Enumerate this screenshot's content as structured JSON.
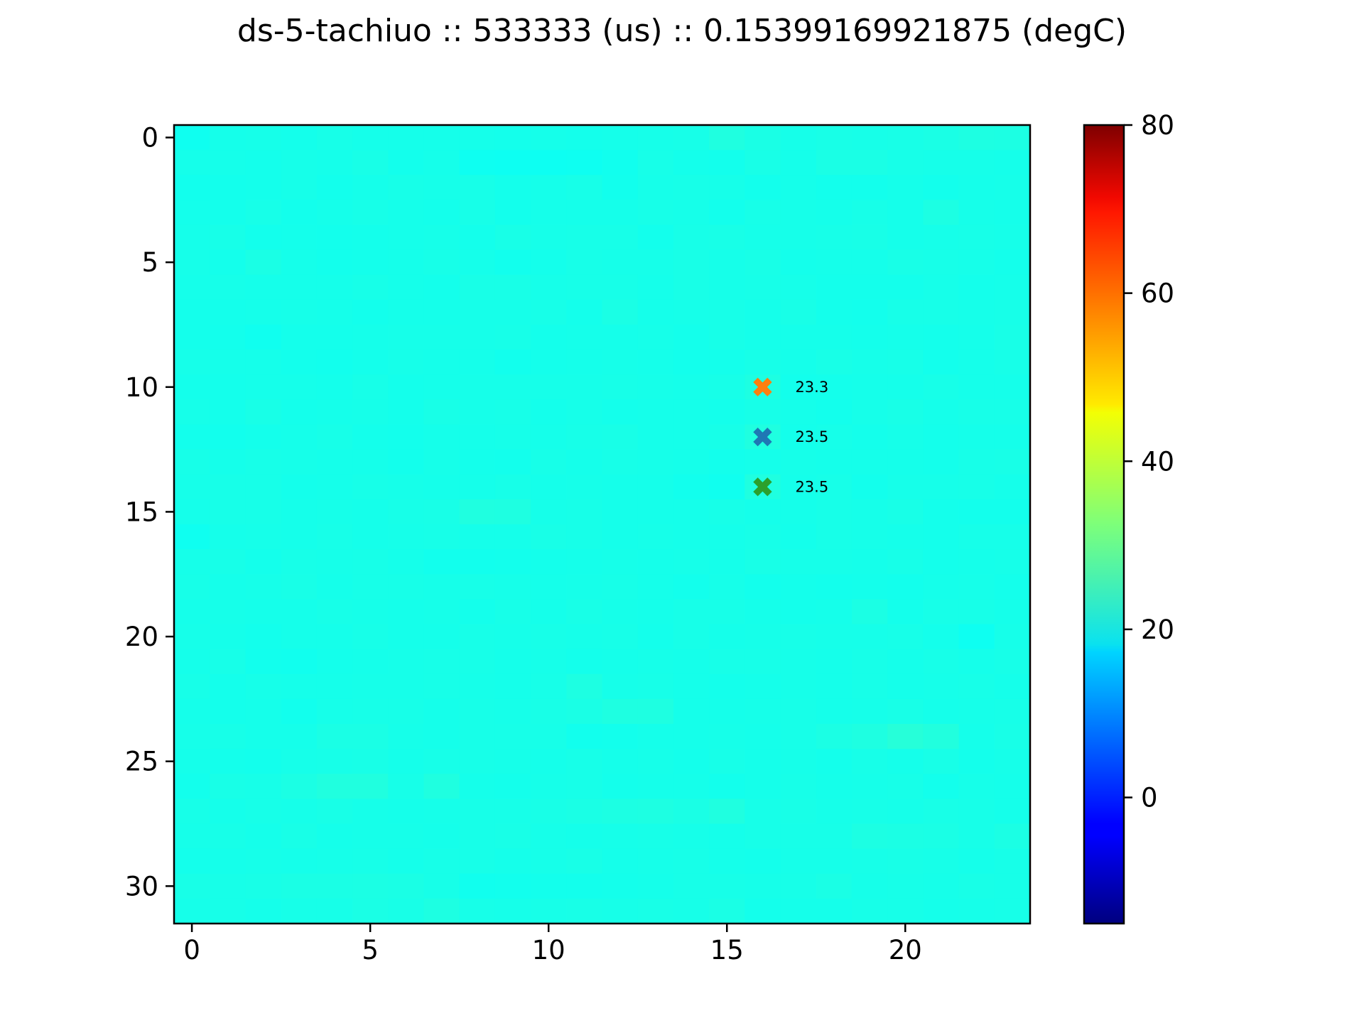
{
  "chart_data": {
    "type": "heatmap",
    "title": "ds-5-tachiuo :: 533333 (us) :: 0.15399169921875 (degC)",
    "xlabel": "",
    "ylabel": "",
    "rows": 32,
    "cols": 24,
    "xlim": [
      -0.5,
      23.5
    ],
    "ylim": [
      31.5,
      -0.5
    ],
    "x_ticks": [
      0,
      5,
      10,
      15,
      20
    ],
    "y_ticks": [
      0,
      5,
      10,
      15,
      20,
      25,
      30
    ],
    "colormap": "jet",
    "colorbar": {
      "vmin": -15,
      "vmax": 80,
      "ticks": [
        0,
        20,
        40,
        60,
        80
      ]
    },
    "base_value": 23.5,
    "values": [
      [
        22.0,
        22.6,
        22.7,
        22.5,
        22.8,
        22.6,
        22.6,
        22.6,
        22.6,
        22.5,
        22.6,
        22.5,
        22.6,
        22.7,
        22.8,
        23.5,
        23.0,
        22.7,
        22.9,
        22.8,
        22.9,
        23.0,
        23.3,
        23.2
      ],
      [
        22.6,
        22.6,
        22.5,
        22.7,
        22.6,
        22.9,
        22.4,
        22.6,
        21.9,
        21.8,
        21.8,
        21.9,
        22.2,
        22.8,
        22.5,
        22.4,
        22.9,
        22.6,
        23.0,
        23.0,
        22.8,
        22.7,
        22.7,
        22.6
      ],
      [
        22.3,
        22.4,
        22.5,
        22.7,
        22.4,
        22.6,
        22.8,
        22.7,
        22.8,
        22.5,
        22.6,
        22.8,
        22.3,
        22.7,
        22.8,
        22.7,
        22.4,
        22.6,
        22.4,
        22.4,
        22.6,
        22.4,
        22.6,
        22.7
      ],
      [
        22.5,
        22.5,
        22.8,
        22.4,
        22.6,
        22.8,
        22.6,
        22.5,
        22.8,
        22.4,
        22.6,
        22.6,
        22.6,
        22.8,
        22.7,
        22.4,
        22.8,
        22.7,
        22.6,
        22.8,
        22.6,
        23.2,
        22.7,
        22.6
      ],
      [
        22.6,
        22.8,
        22.4,
        22.5,
        22.4,
        22.5,
        22.6,
        22.7,
        22.5,
        22.9,
        22.7,
        22.8,
        22.8,
        22.4,
        22.8,
        22.9,
        22.7,
        22.7,
        22.8,
        22.9,
        22.6,
        22.7,
        22.8,
        22.7
      ],
      [
        22.7,
        22.5,
        23.0,
        22.6,
        22.4,
        22.5,
        22.6,
        22.8,
        22.6,
        22.3,
        22.5,
        22.8,
        22.7,
        22.7,
        22.9,
        22.7,
        22.9,
        22.5,
        22.6,
        22.6,
        22.9,
        22.8,
        22.7,
        22.5
      ],
      [
        22.6,
        22.7,
        22.6,
        22.6,
        22.6,
        22.8,
        22.6,
        22.5,
        22.9,
        22.9,
        22.7,
        22.8,
        22.8,
        22.6,
        22.9,
        22.7,
        22.8,
        22.7,
        22.5,
        22.5,
        22.5,
        22.7,
        22.5,
        22.6
      ],
      [
        22.5,
        22.5,
        22.6,
        22.7,
        22.6,
        22.4,
        22.6,
        22.6,
        22.7,
        22.7,
        22.8,
        22.5,
        23.0,
        22.6,
        22.7,
        22.8,
        22.6,
        22.9,
        22.5,
        22.4,
        22.8,
        22.8,
        22.7,
        22.8
      ],
      [
        22.5,
        22.4,
        22.1,
        22.5,
        22.5,
        22.6,
        22.7,
        22.7,
        22.7,
        22.8,
        22.5,
        22.6,
        22.6,
        22.7,
        22.5,
        22.8,
        22.6,
        22.6,
        22.6,
        22.5,
        22.6,
        22.5,
        22.6,
        22.9
      ],
      [
        22.7,
        22.6,
        22.6,
        22.4,
        22.3,
        22.5,
        22.7,
        22.6,
        22.6,
        22.3,
        22.5,
        22.6,
        22.7,
        22.6,
        22.4,
        22.5,
        22.8,
        22.6,
        22.9,
        22.7,
        22.8,
        22.4,
        22.6,
        22.8
      ],
      [
        22.5,
        22.5,
        22.6,
        22.6,
        22.5,
        22.8,
        22.5,
        22.6,
        22.7,
        22.7,
        22.7,
        22.7,
        22.8,
        22.7,
        22.6,
        22.8,
        23.3,
        22.4,
        22.5,
        22.6,
        22.6,
        22.8,
        22.6,
        22.6
      ],
      [
        22.7,
        22.5,
        22.9,
        22.5,
        22.6,
        22.7,
        22.5,
        22.9,
        22.7,
        22.8,
        22.5,
        22.7,
        22.5,
        22.6,
        22.6,
        22.5,
        22.8,
        22.6,
        22.4,
        22.7,
        22.9,
        22.6,
        22.8,
        22.8
      ],
      [
        22.4,
        22.3,
        22.5,
        22.6,
        22.8,
        22.5,
        22.4,
        22.6,
        22.6,
        22.7,
        22.6,
        22.8,
        22.9,
        22.6,
        22.6,
        22.8,
        23.5,
        22.5,
        22.7,
        22.5,
        22.7,
        22.5,
        22.6,
        22.6
      ],
      [
        22.8,
        22.6,
        22.8,
        22.7,
        22.6,
        22.6,
        22.4,
        22.7,
        22.5,
        22.4,
        22.8,
        22.6,
        22.8,
        22.7,
        22.6,
        22.4,
        22.6,
        22.7,
        22.6,
        22.6,
        22.6,
        22.5,
        22.8,
        22.9
      ],
      [
        22.7,
        22.8,
        22.8,
        22.5,
        22.6,
        22.8,
        22.7,
        22.6,
        22.6,
        22.8,
        22.6,
        22.7,
        22.6,
        22.6,
        22.3,
        22.1,
        23.5,
        22.6,
        22.8,
        22.4,
        22.7,
        22.7,
        22.8,
        22.6
      ],
      [
        22.6,
        22.8,
        22.8,
        22.6,
        22.7,
        22.6,
        22.8,
        22.9,
        23.5,
        23.4,
        22.7,
        22.8,
        22.6,
        22.6,
        22.6,
        22.8,
        22.6,
        22.6,
        22.8,
        22.7,
        22.9,
        22.5,
        22.4,
        22.4
      ],
      [
        22.0,
        22.6,
        22.7,
        22.6,
        22.8,
        22.6,
        22.7,
        22.8,
        22.6,
        22.6,
        22.9,
        22.8,
        22.6,
        22.7,
        22.6,
        22.6,
        22.8,
        22.5,
        22.8,
        22.7,
        22.6,
        22.5,
        22.7,
        22.7
      ],
      [
        22.7,
        22.8,
        22.5,
        22.8,
        22.7,
        22.8,
        22.6,
        22.3,
        22.3,
        22.4,
        22.5,
        22.6,
        22.7,
        22.6,
        22.7,
        22.6,
        22.9,
        22.7,
        22.7,
        22.6,
        22.8,
        22.5,
        22.6,
        22.7
      ],
      [
        22.8,
        22.6,
        22.7,
        22.9,
        22.6,
        22.8,
        22.8,
        22.7,
        22.8,
        22.7,
        22.6,
        22.7,
        22.8,
        22.6,
        22.4,
        22.7,
        22.4,
        22.5,
        22.4,
        22.5,
        22.4,
        22.6,
        22.7,
        22.5
      ],
      [
        22.6,
        22.7,
        22.6,
        22.6,
        22.8,
        22.7,
        22.6,
        22.7,
        22.5,
        22.8,
        22.6,
        22.9,
        22.7,
        22.6,
        22.8,
        22.8,
        22.6,
        22.5,
        22.6,
        23.1,
        22.5,
        22.8,
        22.8,
        22.6
      ],
      [
        22.7,
        22.6,
        22.4,
        22.6,
        22.6,
        22.8,
        22.6,
        22.6,
        22.8,
        22.7,
        22.8,
        22.7,
        22.8,
        22.5,
        22.8,
        22.6,
        22.7,
        22.8,
        22.7,
        22.7,
        22.8,
        22.5,
        21.9,
        22.7
      ],
      [
        22.6,
        22.8,
        22.3,
        22.2,
        22.5,
        22.6,
        22.7,
        22.8,
        22.8,
        22.6,
        22.7,
        22.5,
        22.6,
        22.7,
        22.6,
        22.8,
        22.8,
        22.7,
        22.6,
        22.8,
        22.6,
        22.8,
        22.6,
        22.8
      ],
      [
        22.8,
        22.5,
        22.7,
        22.6,
        22.6,
        22.7,
        22.7,
        22.8,
        22.7,
        22.6,
        22.8,
        23.3,
        22.7,
        22.8,
        22.6,
        22.5,
        22.6,
        22.7,
        22.6,
        22.8,
        22.6,
        22.7,
        22.8,
        22.6
      ],
      [
        22.6,
        22.5,
        22.6,
        22.3,
        22.7,
        22.8,
        22.8,
        22.6,
        22.8,
        22.7,
        22.9,
        23.0,
        23.4,
        23.4,
        22.6,
        22.6,
        22.7,
        22.8,
        22.6,
        22.7,
        22.9,
        22.6,
        22.7,
        22.8
      ],
      [
        22.7,
        22.8,
        22.6,
        22.6,
        23.0,
        23.0,
        22.7,
        22.6,
        22.8,
        22.8,
        22.8,
        22.3,
        22.4,
        22.6,
        22.6,
        22.7,
        22.6,
        22.8,
        23.1,
        23.4,
        24.2,
        23.7,
        22.6,
        22.9
      ],
      [
        22.6,
        22.5,
        22.4,
        22.7,
        22.8,
        22.9,
        22.6,
        22.8,
        22.8,
        22.7,
        22.6,
        22.8,
        22.6,
        22.7,
        22.5,
        22.8,
        22.6,
        22.7,
        22.5,
        22.8,
        22.6,
        22.9,
        22.5,
        22.7
      ],
      [
        22.4,
        22.9,
        22.8,
        23.1,
        23.6,
        23.6,
        22.8,
        23.5,
        22.6,
        22.5,
        22.7,
        22.8,
        22.5,
        22.6,
        22.6,
        22.4,
        22.6,
        22.8,
        22.6,
        22.7,
        22.8,
        22.4,
        22.7,
        22.6
      ],
      [
        22.8,
        22.6,
        22.8,
        22.7,
        22.9,
        22.7,
        22.6,
        22.7,
        22.8,
        22.8,
        22.9,
        23.0,
        23.2,
        23.3,
        23.0,
        23.5,
        22.8,
        22.9,
        22.7,
        22.8,
        22.7,
        22.9,
        22.8,
        22.6
      ],
      [
        22.7,
        22.8,
        22.6,
        22.9,
        22.6,
        22.7,
        22.7,
        22.6,
        22.8,
        22.9,
        22.7,
        22.6,
        22.7,
        22.8,
        22.7,
        22.6,
        22.8,
        22.8,
        22.8,
        23.2,
        23.1,
        23.0,
        22.8,
        23.1
      ],
      [
        22.5,
        22.6,
        22.7,
        22.6,
        22.7,
        22.8,
        22.6,
        22.8,
        22.8,
        22.6,
        22.7,
        22.9,
        22.6,
        22.7,
        22.8,
        22.6,
        22.5,
        22.7,
        22.7,
        22.8,
        22.9,
        22.8,
        22.6,
        22.8
      ],
      [
        22.9,
        22.8,
        22.9,
        23.0,
        23.0,
        23.1,
        23.0,
        22.8,
        22.2,
        22.3,
        22.4,
        22.4,
        22.5,
        22.6,
        22.8,
        22.8,
        22.7,
        22.8,
        23.0,
        22.7,
        22.8,
        22.7,
        22.9,
        22.8
      ],
      [
        22.7,
        22.8,
        22.6,
        22.8,
        22.8,
        23.0,
        22.9,
        23.3,
        22.8,
        22.7,
        22.8,
        22.9,
        22.8,
        22.9,
        22.8,
        23.0,
        22.5,
        22.6,
        22.6,
        22.8,
        22.8,
        22.6,
        22.7,
        22.8
      ]
    ],
    "markers": [
      {
        "x": 16,
        "y": 10,
        "color": "#ff7f0e",
        "label": "23.3"
      },
      {
        "x": 16,
        "y": 12,
        "color": "#1f77b4",
        "label": "23.5"
      },
      {
        "x": 16,
        "y": 14,
        "color": "#2ca02c",
        "label": "23.5"
      }
    ]
  }
}
